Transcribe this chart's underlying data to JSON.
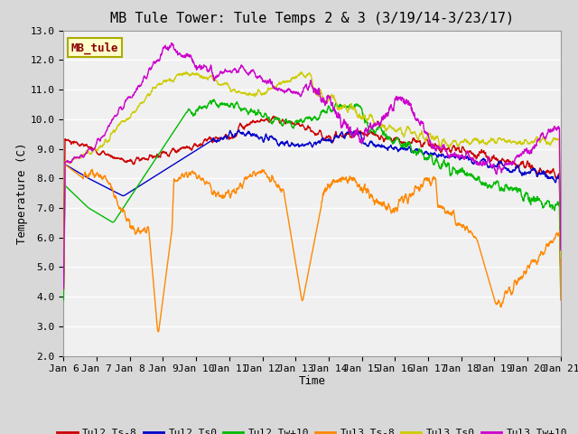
{
  "title": "MB Tule Tower: Tule Temps 2 & 3 (3/19/14-3/23/17)",
  "xlabel": "Time",
  "ylabel": "Temperature (C)",
  "ylim": [
    2.0,
    13.0
  ],
  "yticks": [
    2.0,
    3.0,
    4.0,
    5.0,
    6.0,
    7.0,
    8.0,
    9.0,
    10.0,
    11.0,
    12.0,
    13.0
  ],
  "xtick_labels": [
    "Jan 6",
    "Jan 7",
    "Jan 8",
    "Jan 9",
    "Jan 10",
    "Jan 11",
    "Jan 12",
    "Jan 13",
    "Jan 14",
    "Jan 15",
    "Jan 16",
    "Jan 17",
    "Jan 18",
    "Jan 19",
    "Jan 20",
    "Jan 21"
  ],
  "n_points": 2000,
  "fig_bg_color": "#d8d8d8",
  "plot_bg_color": "#f0f0f0",
  "grid_color": "#ffffff",
  "legend_label": "MB_tule",
  "legend_bg": "#ffffcc",
  "legend_border": "#aaaa00",
  "title_fontsize": 11,
  "axis_fontsize": 9,
  "tick_fontsize": 8,
  "series": [
    {
      "name": "Tul2_Ts-8",
      "color": "#cc0000",
      "lw": 1.0
    },
    {
      "name": "Tul2_Ts0",
      "color": "#0000cc",
      "lw": 1.0
    },
    {
      "name": "Tul2_Tw+10",
      "color": "#00bb00",
      "lw": 1.0
    },
    {
      "name": "Tul3_Ts-8",
      "color": "#ff8800",
      "lw": 1.0
    },
    {
      "name": "Tul3_Ts0",
      "color": "#cccc00",
      "lw": 1.0
    },
    {
      "name": "Tul3_Tw+10",
      "color": "#cc00cc",
      "lw": 1.0
    }
  ]
}
